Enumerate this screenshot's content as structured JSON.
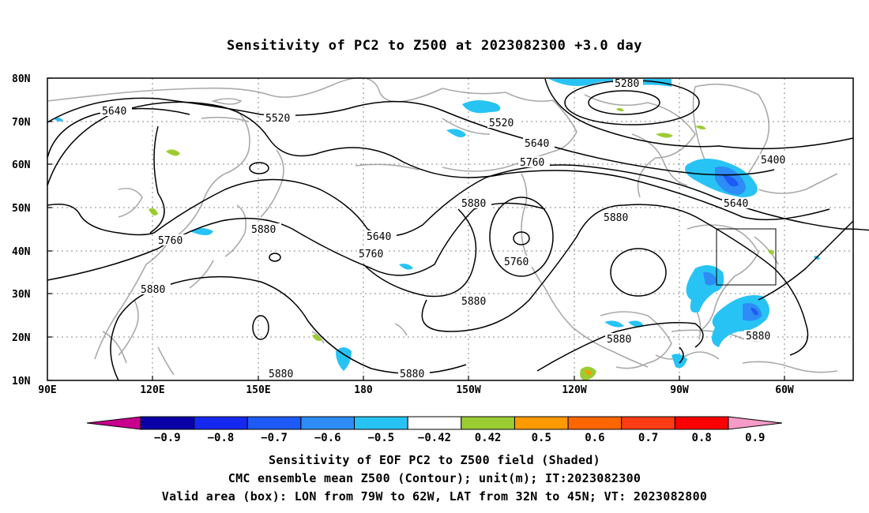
{
  "title": "Sensitivity of PC2 to Z500 at 2023082300 +3.0 day",
  "map": {
    "lat_labels": [
      "10N",
      "20N",
      "30N",
      "40N",
      "50N",
      "60N",
      "70N",
      "80N"
    ],
    "lon_labels": [
      "90E",
      "120E",
      "150E",
      "180",
      "150W",
      "120W",
      "90W",
      "60W"
    ],
    "contour_labels": {
      "c5280": "5280",
      "c5400": "5400",
      "c5520a": "5520",
      "c5520b": "5520",
      "c5640a": "5640",
      "c5640b": "5640",
      "c5640c": "5640",
      "c5640d": "5640",
      "c5760a": "5760",
      "c5760b": "5760",
      "c5760c": "5760",
      "c5760d": "5760",
      "c5880a": "5880",
      "c5880b": "5880",
      "c5880c": "5880",
      "c5880d": "5880",
      "c5880e": "5880",
      "c5880f": "5880",
      "c5880g": "5880",
      "c5880h": "5880",
      "c5880i": "5880"
    },
    "valid_box": {
      "lon_from": "79W",
      "lon_to": "62W",
      "lat_from": "32N",
      "lat_to": "45N"
    }
  },
  "colorbar": {
    "labels": [
      "-0.9",
      "-0.8",
      "-0.7",
      "-0.6",
      "-0.5",
      "-0.42",
      "0.42",
      "0.5",
      "0.6",
      "0.7",
      "0.8",
      "0.9"
    ],
    "colors": [
      "#0a00a8",
      "#1428f0",
      "#1e5af5",
      "#2d8cf5",
      "#28c3f5",
      "#ffffff",
      "#9bcd32",
      "#ff9900",
      "#ff6600",
      "#ff3c14",
      "#ff0000"
    ],
    "left_tip_color": "#c8008c",
    "right_tip_color": "#f59bc8"
  },
  "footer": {
    "line1": "Sensitivity of EOF PC2 to Z500 field (Shaded)",
    "line2": "CMC ensemble mean Z500 (Contour); unit(m); IT:2023082300",
    "line3": "Valid area (box): LON from 79W to 62W, LAT from 32N to 45N; VT: 2023082800"
  }
}
